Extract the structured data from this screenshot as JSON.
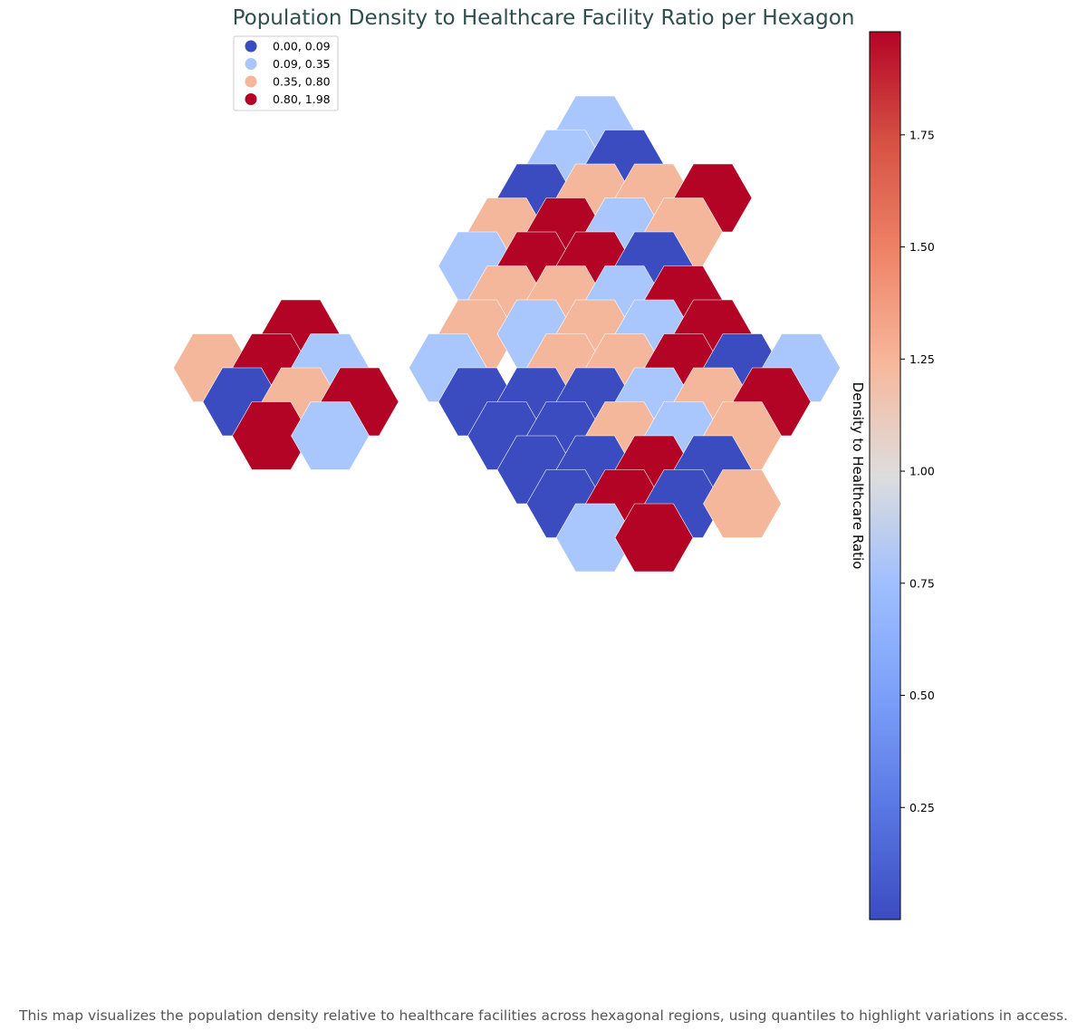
{
  "title": "Population Density to Healthcare Facility Ratio per Hexagon",
  "caption": "This map visualizes the population density relative to healthcare facilities across hexagonal regions, using quantiles to highlight variations in access.",
  "legend": {
    "placement": "top-left",
    "entries": [
      {
        "label": "0.00, 0.09",
        "color": "#3b4cc0"
      },
      {
        "label": "0.09, 0.35",
        "color": "#aac7fd"
      },
      {
        "label": "0.35, 0.80",
        "color": "#f5b79b"
      },
      {
        "label": "0.80, 1.98",
        "color": "#b40426"
      }
    ]
  },
  "colorbar": {
    "label": "Density to Healthcare Ratio",
    "colormap": "coolwarm",
    "min": 0.0,
    "max": 1.98,
    "ticks": [
      {
        "value": 0.25,
        "label": "0.25"
      },
      {
        "value": 0.5,
        "label": "0.50"
      },
      {
        "value": 0.75,
        "label": "0.75"
      },
      {
        "value": 1.0,
        "label": "1.00"
      },
      {
        "value": 1.25,
        "label": "1.25"
      },
      {
        "value": 1.5,
        "label": "1.50"
      },
      {
        "value": 1.75,
        "label": "1.75"
      }
    ]
  },
  "hex_grid": {
    "rows": [
      {
        "row": 0,
        "cells": [
          {
            "col": 0,
            "class": 1
          }
        ]
      },
      {
        "row": 1,
        "cells": [
          {
            "col": -1,
            "class": 1
          },
          {
            "col": 1,
            "class": 0
          }
        ]
      },
      {
        "row": 2,
        "cells": [
          {
            "col": -2,
            "class": 0
          },
          {
            "col": 0,
            "class": 2
          },
          {
            "col": 2,
            "class": 2
          },
          {
            "col": 4,
            "class": 3
          }
        ]
      },
      {
        "row": 3,
        "cells": [
          {
            "col": -3,
            "class": 2
          },
          {
            "col": -1,
            "class": 3
          },
          {
            "col": 1,
            "class": 1
          },
          {
            "col": 3,
            "class": 2
          }
        ]
      },
      {
        "row": 4,
        "cells": [
          {
            "col": -4,
            "class": 1
          },
          {
            "col": -2,
            "class": 3
          },
          {
            "col": 0,
            "class": 3
          },
          {
            "col": 2,
            "class": 0
          }
        ]
      },
      {
        "row": 5,
        "cells": [
          {
            "col": -3,
            "class": 2
          },
          {
            "col": -1,
            "class": 2
          },
          {
            "col": 1,
            "class": 1
          },
          {
            "col": 3,
            "class": 3
          }
        ]
      },
      {
        "row": 6,
        "cells": [
          {
            "col": -10,
            "class": 3
          },
          {
            "col": -4,
            "class": 2
          },
          {
            "col": -2,
            "class": 1
          },
          {
            "col": 0,
            "class": 2
          },
          {
            "col": 2,
            "class": 1
          },
          {
            "col": 4,
            "class": 3
          }
        ]
      },
      {
        "row": 7,
        "cells": [
          {
            "col": -13,
            "class": 2
          },
          {
            "col": -11,
            "class": 3
          },
          {
            "col": -9,
            "class": 1
          },
          {
            "col": -5,
            "class": 1
          },
          {
            "col": -1,
            "class": 2
          },
          {
            "col": 1,
            "class": 2
          },
          {
            "col": 3,
            "class": 3
          },
          {
            "col": 5,
            "class": 0
          },
          {
            "col": 7,
            "class": 1
          }
        ]
      },
      {
        "row": 8,
        "cells": [
          {
            "col": -12,
            "class": 0
          },
          {
            "col": -10,
            "class": 2
          },
          {
            "col": -8,
            "class": 3
          },
          {
            "col": -4,
            "class": 0
          },
          {
            "col": -2,
            "class": 0
          },
          {
            "col": 0,
            "class": 0
          },
          {
            "col": 2,
            "class": 1
          },
          {
            "col": 4,
            "class": 2
          },
          {
            "col": 6,
            "class": 3
          }
        ]
      },
      {
        "row": 9,
        "cells": [
          {
            "col": -11,
            "class": 3
          },
          {
            "col": -9,
            "class": 1
          },
          {
            "col": -3,
            "class": 0
          },
          {
            "col": -1,
            "class": 0
          },
          {
            "col": 1,
            "class": 2
          },
          {
            "col": 3,
            "class": 1
          },
          {
            "col": 5,
            "class": 2
          }
        ]
      },
      {
        "row": 10,
        "cells": [
          {
            "col": -2,
            "class": 0
          },
          {
            "col": 0,
            "class": 0
          },
          {
            "col": 2,
            "class": 3
          },
          {
            "col": 4,
            "class": 0
          }
        ]
      },
      {
        "row": 11,
        "cells": [
          {
            "col": -1,
            "class": 0
          },
          {
            "col": 1,
            "class": 3
          },
          {
            "col": 3,
            "class": 0
          },
          {
            "col": 5,
            "class": 2
          }
        ]
      },
      {
        "row": 12,
        "cells": [
          {
            "col": 0,
            "class": 1
          },
          {
            "col": 2,
            "class": 3
          }
        ]
      }
    ]
  }
}
